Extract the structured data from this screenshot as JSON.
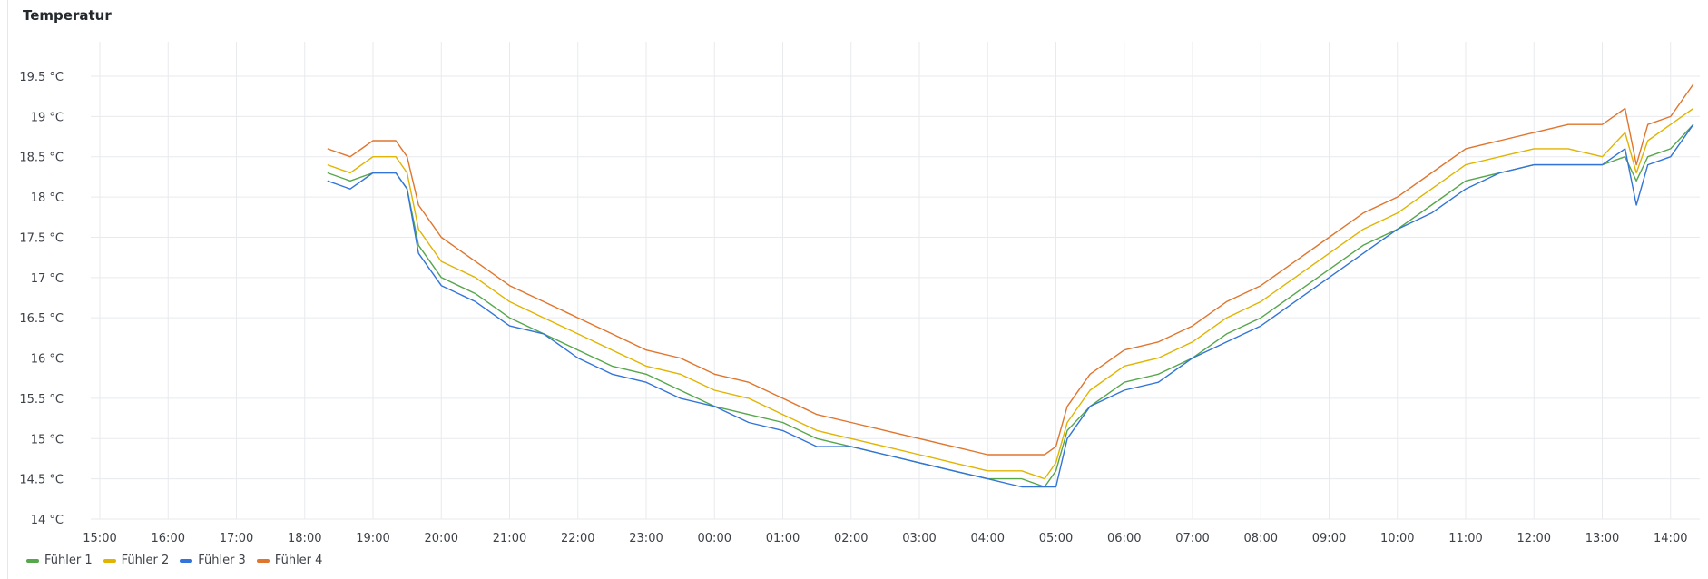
{
  "panel": {
    "title": "Temperatur"
  },
  "chart_data": {
    "type": "line",
    "title": "Temperatur",
    "xlabel": "",
    "ylabel": "",
    "x_ticks": [
      "15:00",
      "16:00",
      "17:00",
      "18:00",
      "19:00",
      "20:00",
      "21:00",
      "22:00",
      "23:00",
      "00:00",
      "01:00",
      "02:00",
      "03:00",
      "04:00",
      "05:00",
      "06:00",
      "07:00",
      "08:00",
      "09:00",
      "10:00",
      "11:00",
      "12:00",
      "13:00",
      "14:00"
    ],
    "y_ticks": [
      "14 °C",
      "14.5 °C",
      "15 °C",
      "15.5 °C",
      "16 °C",
      "16.5 °C",
      "17 °C",
      "17.5 °C",
      "18 °C",
      "18.5 °C",
      "19 °C",
      "19.5 °C"
    ],
    "ylim": [
      14,
      19.5
    ],
    "x": [
      "18:20",
      "18:40",
      "19:00",
      "19:20",
      "19:30",
      "19:40",
      "20:00",
      "20:30",
      "21:00",
      "21:30",
      "22:00",
      "22:30",
      "23:00",
      "23:30",
      "00:00",
      "00:30",
      "01:00",
      "01:30",
      "02:00",
      "02:30",
      "03:00",
      "03:30",
      "04:00",
      "04:30",
      "04:50",
      "05:00",
      "05:10",
      "05:30",
      "06:00",
      "06:30",
      "07:00",
      "07:30",
      "08:00",
      "08:30",
      "09:00",
      "09:30",
      "10:00",
      "10:30",
      "11:00",
      "11:30",
      "12:00",
      "12:30",
      "13:00",
      "13:20",
      "13:30",
      "13:40",
      "14:00",
      "14:20"
    ],
    "series": [
      {
        "name": "Fühler 1",
        "color": "#56a64b",
        "values": [
          18.3,
          18.2,
          18.3,
          18.3,
          18.1,
          17.4,
          17.0,
          16.8,
          16.5,
          16.3,
          16.1,
          15.9,
          15.8,
          15.6,
          15.4,
          15.3,
          15.2,
          15.0,
          14.9,
          14.8,
          14.7,
          14.6,
          14.5,
          14.5,
          14.4,
          14.6,
          15.1,
          15.4,
          15.7,
          15.8,
          16.0,
          16.3,
          16.5,
          16.8,
          17.1,
          17.4,
          17.6,
          17.9,
          18.2,
          18.3,
          18.4,
          18.4,
          18.4,
          18.5,
          18.2,
          18.5,
          18.6,
          18.9
        ]
      },
      {
        "name": "Fühler 2",
        "color": "#e0b400",
        "values": [
          18.4,
          18.3,
          18.5,
          18.5,
          18.3,
          17.6,
          17.2,
          17.0,
          16.7,
          16.5,
          16.3,
          16.1,
          15.9,
          15.8,
          15.6,
          15.5,
          15.3,
          15.1,
          15.0,
          14.9,
          14.8,
          14.7,
          14.6,
          14.6,
          14.5,
          14.7,
          15.2,
          15.6,
          15.9,
          16.0,
          16.2,
          16.5,
          16.7,
          17.0,
          17.3,
          17.6,
          17.8,
          18.1,
          18.4,
          18.5,
          18.6,
          18.6,
          18.5,
          18.8,
          18.3,
          18.7,
          18.9,
          19.1
        ]
      },
      {
        "name": "Fühler 3",
        "color": "#3274d9",
        "values": [
          18.2,
          18.1,
          18.3,
          18.3,
          18.1,
          17.3,
          16.9,
          16.7,
          16.4,
          16.3,
          16.0,
          15.8,
          15.7,
          15.5,
          15.4,
          15.2,
          15.1,
          14.9,
          14.9,
          14.8,
          14.7,
          14.6,
          14.5,
          14.4,
          14.4,
          14.4,
          15.0,
          15.4,
          15.6,
          15.7,
          16.0,
          16.2,
          16.4,
          16.7,
          17.0,
          17.3,
          17.6,
          17.8,
          18.1,
          18.3,
          18.4,
          18.4,
          18.4,
          18.6,
          17.9,
          18.4,
          18.5,
          18.9
        ]
      },
      {
        "name": "Fühler 4",
        "color": "#e0752d",
        "values": [
          18.6,
          18.5,
          18.7,
          18.7,
          18.5,
          17.9,
          17.5,
          17.2,
          16.9,
          16.7,
          16.5,
          16.3,
          16.1,
          16.0,
          15.8,
          15.7,
          15.5,
          15.3,
          15.2,
          15.1,
          15.0,
          14.9,
          14.8,
          14.8,
          14.8,
          14.9,
          15.4,
          15.8,
          16.1,
          16.2,
          16.4,
          16.7,
          16.9,
          17.2,
          17.5,
          17.8,
          18.0,
          18.3,
          18.6,
          18.7,
          18.8,
          18.9,
          18.9,
          19.1,
          18.4,
          18.9,
          19.0,
          19.4
        ]
      }
    ],
    "grid": true,
    "legend": "bottom-left"
  }
}
